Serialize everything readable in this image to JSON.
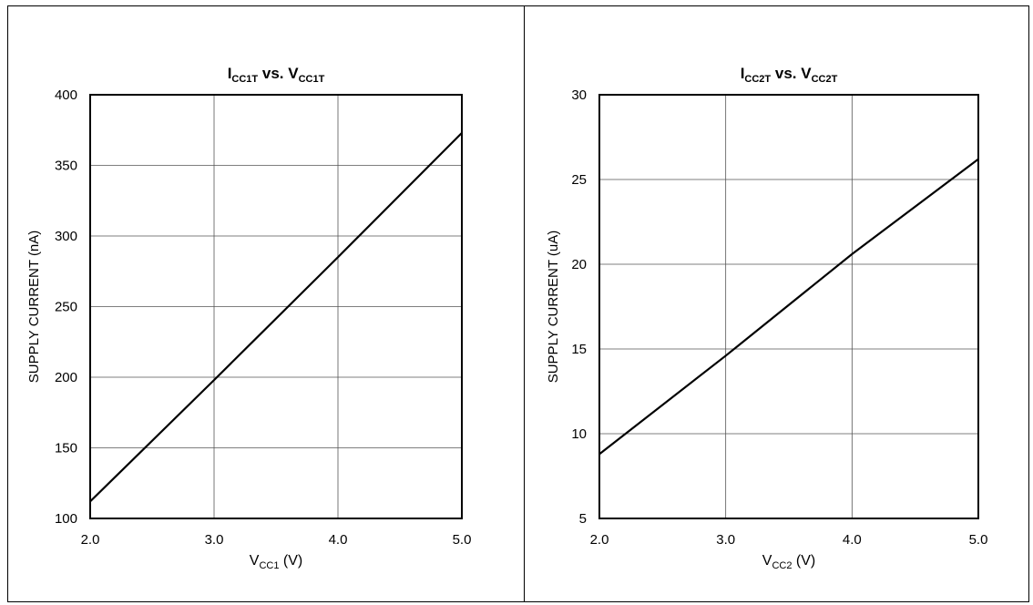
{
  "chart_data": [
    {
      "type": "line",
      "title": {
        "main": "I",
        "sub": "CC1T",
        "mid": " vs. V",
        "sub2": "CC1T"
      },
      "xlabel": {
        "main": "V",
        "sub": "CC1",
        "unit": " (V)"
      },
      "ylabel": "SUPPLY CURRENT (nA)",
      "xlim": [
        2.0,
        5.0
      ],
      "ylim": [
        100,
        400
      ],
      "xticks": [
        "2.0",
        "3.0",
        "4.0",
        "5.0"
      ],
      "yticks": [
        "100",
        "150",
        "200",
        "250",
        "300",
        "350",
        "400"
      ],
      "grid": true,
      "series": [
        {
          "x": [
            2.0,
            3.0,
            4.0,
            5.0
          ],
          "y": [
            112,
            198,
            285,
            373
          ]
        }
      ]
    },
    {
      "type": "line",
      "title": {
        "main": "I",
        "sub": "CC2T",
        "mid": " vs. V",
        "sub2": "CC2T"
      },
      "xlabel": {
        "main": "V",
        "sub": "CC2",
        "unit": " (V)"
      },
      "ylabel": "SUPPLY CURRENT (uA)",
      "xlim": [
        2.0,
        5.0
      ],
      "ylim": [
        5,
        30
      ],
      "xticks": [
        "2.0",
        "3.0",
        "4.0",
        "5.0"
      ],
      "yticks": [
        "5",
        "10",
        "15",
        "20",
        "25",
        "30"
      ],
      "grid": true,
      "series": [
        {
          "x": [
            2.0,
            3.0,
            4.0,
            5.0
          ],
          "y": [
            8.8,
            14.6,
            20.6,
            26.2
          ]
        }
      ]
    }
  ]
}
